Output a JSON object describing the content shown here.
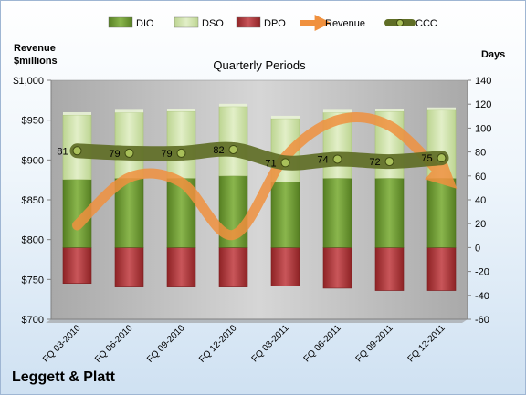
{
  "chart_data": {
    "type": "bar",
    "title": "Quarterly Periods",
    "company": "Leggett & Platt",
    "left_axis_label": [
      "Revenue",
      "$millions"
    ],
    "right_axis_label": "Days",
    "categories": [
      "FQ 03-2010",
      "FQ 06-2010",
      "FQ 09-2010",
      "FQ 12-2010",
      "FQ 03-2011",
      "FQ 06-2011",
      "FQ 09-2011",
      "FQ 12-2011"
    ],
    "series": [
      {
        "name": "DIO",
        "axis": "days",
        "values": [
          57,
          58,
          58,
          60,
          55,
          58,
          58,
          58
        ]
      },
      {
        "name": "DSO",
        "axis": "days",
        "values": [
          54,
          55,
          56,
          58,
          53,
          55,
          56,
          57
        ]
      },
      {
        "name": "DPO",
        "axis": "days",
        "values": [
          -30,
          -33,
          -33,
          -33,
          -32,
          -34,
          -36,
          -36
        ]
      },
      {
        "name": "Revenue",
        "axis": "revenue",
        "values": [
          818,
          878,
          872,
          806,
          904,
          950,
          943,
          882
        ]
      },
      {
        "name": "CCC",
        "axis": "days",
        "values": [
          81,
          79,
          79,
          82,
          71,
          74,
          72,
          75
        ]
      }
    ],
    "ccc_labels": [
      "81",
      "79",
      "79",
      "82",
      "71",
      "74",
      "72",
      "75"
    ],
    "left_axis": {
      "min": 700,
      "max": 1000,
      "step": 50,
      "ticks": [
        "$700",
        "$750",
        "$800",
        "$850",
        "$900",
        "$950",
        "$1,000"
      ]
    },
    "right_axis": {
      "min": -60,
      "max": 140,
      "step": 20,
      "ticks": [
        "-60",
        "-40",
        "-20",
        "0",
        "20",
        "40",
        "60",
        "80",
        "100",
        "120",
        "140"
      ]
    },
    "grid": false,
    "legend_position": "top",
    "colors": {
      "DIO": "#77a03a",
      "DSO": "#cde2a6",
      "DPO": "#b13a3c",
      "Revenue": "#f0913f",
      "CCC": "#5f6e26",
      "plot_bg": "#bcbcbc"
    }
  }
}
